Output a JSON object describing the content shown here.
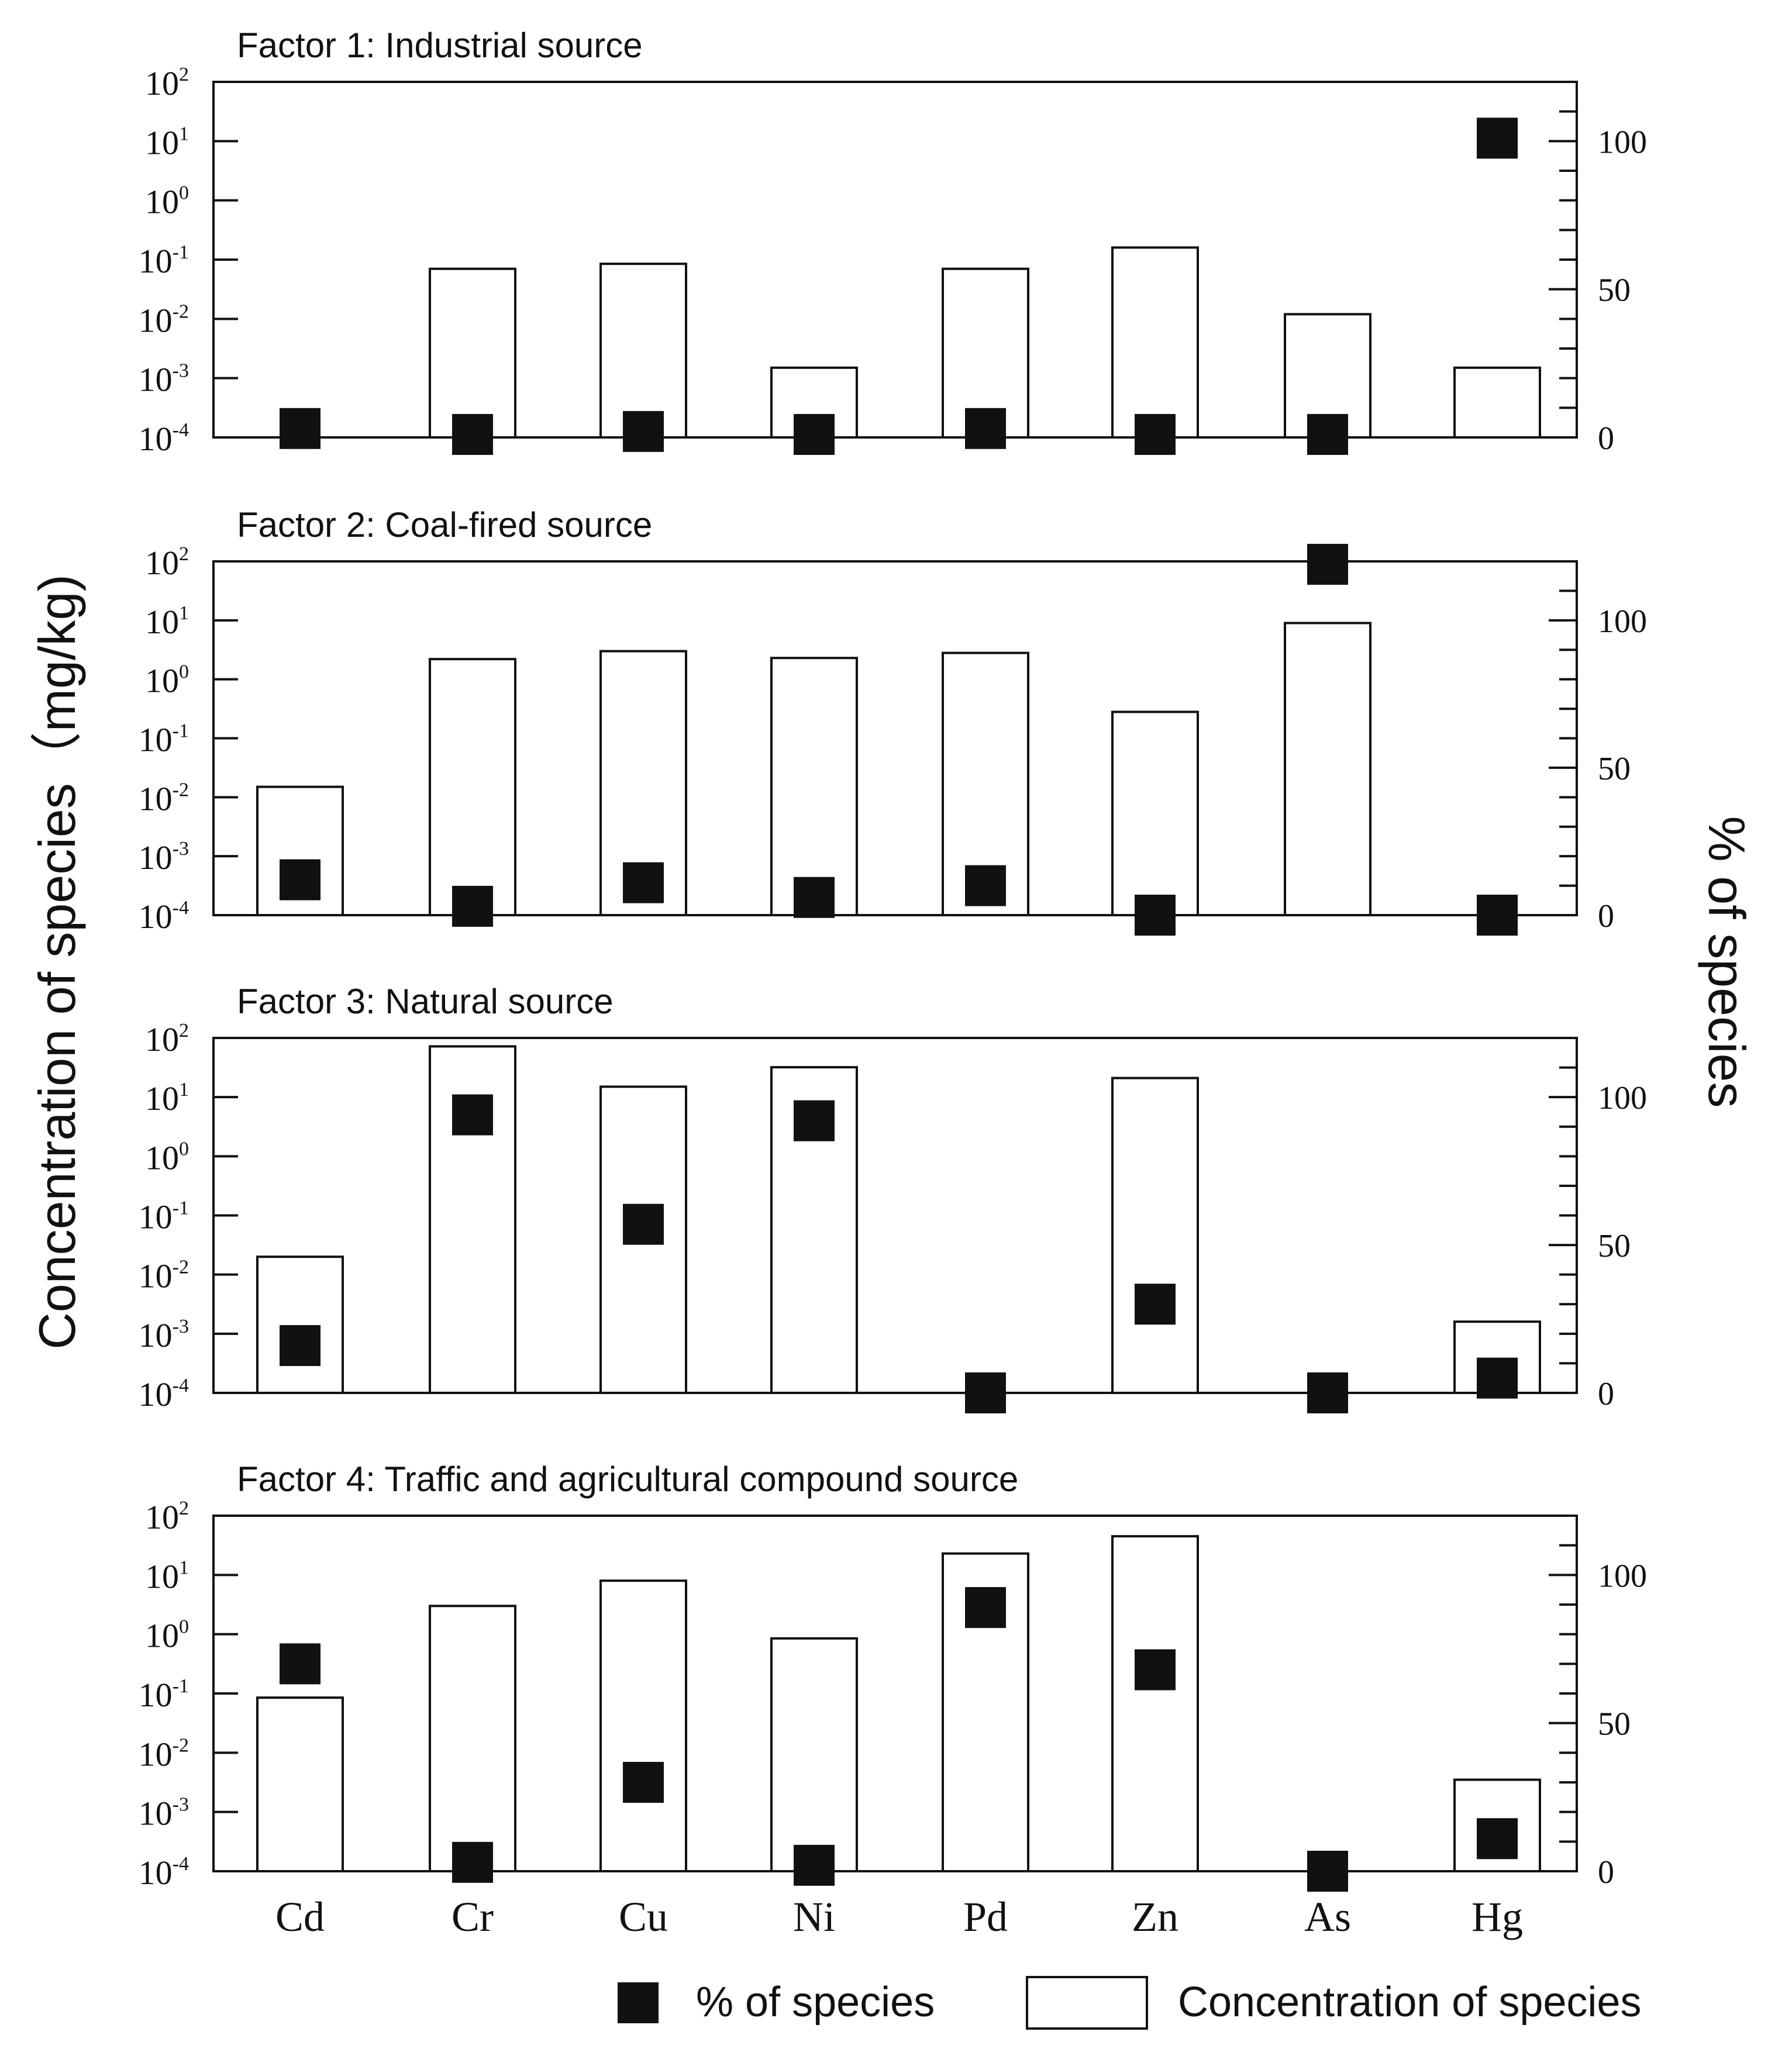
{
  "chart_data": {
    "type": "bar",
    "ylabel": "Concentration of species（mg/kg)",
    "y2label": "% of species",
    "categories": [
      "Cd",
      "Cr",
      "Cu",
      "Ni",
      "Pd",
      "Zn",
      "As",
      "Hg"
    ],
    "y_scale": "log",
    "ylim": [
      0.0001,
      100
    ],
    "y_ticks": [
      {
        "base": "10",
        "exp": "2"
      },
      {
        "base": "10",
        "exp": "1"
      },
      {
        "base": "10",
        "exp": "0"
      },
      {
        "base": "10",
        "exp": "-1"
      },
      {
        "base": "10",
        "exp": "-2"
      },
      {
        "base": "10",
        "exp": "-3"
      },
      {
        "base": "10",
        "exp": "-4"
      }
    ],
    "y2lim": [
      0,
      120
    ],
    "y2_ticks": [
      "100",
      "50",
      "0"
    ],
    "legend": {
      "placement": "bottom",
      "square_label": "% of species",
      "bar_label": "Concentration of species"
    },
    "panels": [
      {
        "title": "Factor 1: Industrial source",
        "concentration": [
          null,
          0.07,
          0.085,
          0.0015,
          0.07,
          0.16,
          0.012,
          0.0015
        ],
        "percent": [
          3,
          1,
          2,
          1,
          3,
          1,
          1,
          101
        ]
      },
      {
        "title": "Factor 2: Coal-fired source",
        "concentration": [
          0.015,
          2.2,
          3.0,
          2.3,
          2.8,
          0.28,
          9.0,
          null
        ],
        "percent": [
          12,
          3,
          11,
          6,
          10,
          0,
          119,
          0
        ]
      },
      {
        "title": "Factor 3: Natural source",
        "concentration": [
          0.02,
          72,
          15,
          32,
          null,
          21,
          null,
          0.0016
        ],
        "percent": [
          16,
          94,
          57,
          92,
          0,
          30,
          0,
          5
        ]
      },
      {
        "title": "Factor 4: Traffic and agricultural  compound source",
        "concentration": [
          0.085,
          3.0,
          8.0,
          0.85,
          23,
          45,
          null,
          0.0035
        ],
        "percent": [
          70,
          3,
          30,
          2,
          89,
          68,
          0,
          11
        ]
      }
    ]
  }
}
